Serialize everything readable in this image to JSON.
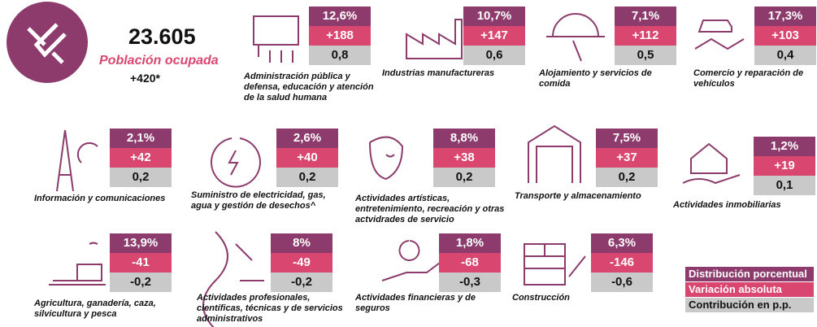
{
  "header": {
    "total": "23.605",
    "label": "Población ocupada",
    "change": "+420*"
  },
  "sectors": [
    {
      "name": "Administración pública y defensa, educación y atención de la salud humana",
      "share": "12,6%",
      "change": "+188",
      "contribution": "0,8"
    },
    {
      "name": "Industrias manufactureras",
      "share": "10,7%",
      "change": "+147",
      "contribution": "0,6"
    },
    {
      "name": "Alojamiento y servicios de comida",
      "share": "7,1%",
      "change": "+112",
      "contribution": "0,5"
    },
    {
      "name": "Comercio y reparación de vehículos",
      "share": "17,3%",
      "change": "+103",
      "contribution": "0,4"
    },
    {
      "name": "Información y comunicaciones",
      "share": "2,1%",
      "change": "+42",
      "contribution": "0,2"
    },
    {
      "name": "Suministro de electricidad, gas, agua y gestión de desechos^",
      "share": "2,6%",
      "change": "+40",
      "contribution": "0,2"
    },
    {
      "name": "Actividades artísticas, entretenimiento, recreación y otras actvidrades de servicio",
      "share": "8,8%",
      "change": "+38",
      "contribution": "0,2"
    },
    {
      "name": "Transporte y almacenamiento",
      "share": "7,5%",
      "change": "+37",
      "contribution": "0,2"
    },
    {
      "name": "Actividades inmobiliarias",
      "share": "1,2%",
      "change": "+19",
      "contribution": "0,1"
    },
    {
      "name": "Agricultura, ganadería, caza, silvicultura y pesca",
      "share": "13,9%",
      "change": "-41",
      "contribution": "-0,2"
    },
    {
      "name": "Actividades profesionales, científicas, técnicas y de servicios administrativos",
      "share": "8%",
      "change": "-49",
      "contribution": "-0,2"
    },
    {
      "name": "Actividades financieras y de seguros",
      "share": "1,8%",
      "change": "-68",
      "contribution": "-0,3"
    },
    {
      "name": "Construcción",
      "share": "6,3%",
      "change": "-146",
      "contribution": "-0,6"
    }
  ],
  "legend": [
    "Distribución porcentual",
    "Variación absoluta",
    "Contribución en p.p."
  ]
}
